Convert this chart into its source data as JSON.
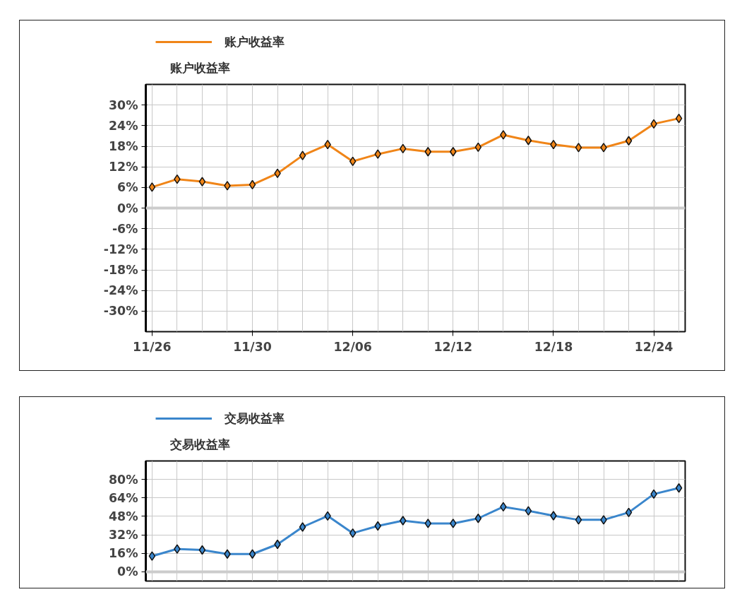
{
  "chart_data": [
    {
      "type": "line",
      "ylabel": "账户收益率",
      "categories": [
        "11/26",
        null,
        null,
        null,
        "11/30",
        null,
        null,
        null,
        "12/06",
        null,
        null,
        null,
        "12/12",
        null,
        null,
        null,
        "12/18",
        null,
        null,
        null,
        "12/24",
        null
      ],
      "series": [
        {
          "name": "账户收益率",
          "color": "#f08518",
          "values": [
            6.1,
            8.4,
            7.7,
            6.5,
            6.8,
            10.1,
            15.3,
            18.5,
            13.6,
            15.7,
            17.3,
            16.4,
            16.4,
            17.7,
            21.3,
            19.7,
            18.5,
            17.6,
            17.6,
            19.6,
            24.5,
            26.1
          ]
        }
      ],
      "ylim": [
        -36,
        36
      ],
      "yticks": [
        {
          "value": 30,
          "label": "30%"
        },
        {
          "value": 24,
          "label": "24%"
        },
        {
          "value": 18,
          "label": "18%"
        },
        {
          "value": 12,
          "label": "12%"
        },
        {
          "value": 6,
          "label": "6%"
        },
        {
          "value": 0,
          "label": "0%"
        },
        {
          "value": -6,
          "label": "-6%"
        },
        {
          "value": -12,
          "label": "-12%"
        },
        {
          "value": -18,
          "label": "-18%"
        },
        {
          "value": -24,
          "label": "-24%"
        },
        {
          "value": -30,
          "label": "-30%"
        }
      ],
      "ref_lines": [
        {
          "axis": "y",
          "value": 0,
          "color": "#cccccc"
        }
      ],
      "grid": true,
      "legend": "top left",
      "marker": "diamond",
      "line_style": "solid"
    },
    {
      "type": "line",
      "ylabel": "交易收益率",
      "categories": [
        null,
        null,
        null,
        null,
        null,
        null,
        null,
        null,
        null,
        null,
        null,
        null,
        null,
        null,
        null,
        null,
        null,
        null,
        null,
        null,
        null,
        null
      ],
      "series": [
        {
          "name": "交易收益率",
          "color": "#3a86cc",
          "values": [
            13.6,
            19.8,
            18.9,
            15.4,
            15.4,
            23.8,
            38.8,
            48.4,
            33.5,
            39.7,
            44.3,
            41.9,
            41.9,
            46.3,
            56.3,
            52.8,
            48.6,
            45.0,
            45.0,
            51.4,
            67.3,
            72.6
          ]
        }
      ],
      "ylim": [
        -8,
        96
      ],
      "yticks": [
        {
          "value": 80,
          "label": "80%"
        },
        {
          "value": 64,
          "label": "64%"
        },
        {
          "value": 48,
          "label": "48%"
        },
        {
          "value": 32,
          "label": "32%"
        },
        {
          "value": 16,
          "label": "16%"
        },
        {
          "value": 0,
          "label": "0%"
        }
      ],
      "ref_lines": [
        {
          "axis": "y",
          "value": 0,
          "color": "#cccccc"
        }
      ],
      "tick_labels": "y",
      "grid": true,
      "legend": "top left",
      "marker": "diamond",
      "line_style": "solid"
    }
  ]
}
